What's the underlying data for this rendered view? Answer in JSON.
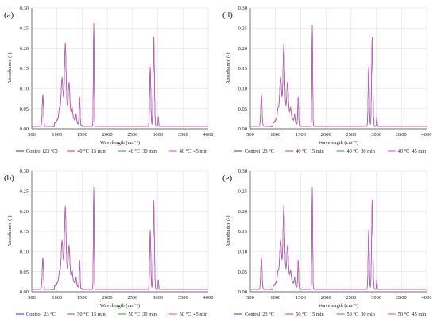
{
  "chart_data": [
    {
      "type": "line",
      "panel_label": "(a)",
      "xlabel": "Wavelength (cm⁻¹)",
      "ylabel": "Absorbance (-)",
      "xlim": [
        500,
        4000
      ],
      "ylim": [
        0,
        0.3
      ],
      "xticks": [
        "500",
        "1000",
        "1500",
        "2000",
        "2500",
        "3000",
        "3500",
        "4000"
      ],
      "yticks": [
        "0.00",
        "0.05",
        "0.10",
        "0.15",
        "0.20",
        "0.25",
        "0.30"
      ],
      "legend_position": "bottom",
      "series": [
        {
          "name": "Control (23 °C)",
          "color": "#3f3fd9"
        },
        {
          "name": "40 °C_15 min",
          "color": "#e8445a"
        },
        {
          "name": "40 °C_30 min",
          "color": "#3cae4a"
        },
        {
          "name": "40 °C_45 min",
          "color": "#e052e0"
        }
      ],
      "peaks": {
        "x": [
          720,
          1100,
          1165,
          1240,
          1450,
          1730,
          2850,
          2920,
          3010
        ],
        "y": [
          0.085,
          0.09,
          0.168,
          0.075,
          0.075,
          0.27,
          0.155,
          0.228,
          0.03
        ]
      }
    },
    {
      "type": "line",
      "panel_label": "(d)",
      "xlabel": "Wavelength (cm⁻¹)",
      "ylabel": "Absorbance (-)",
      "xlim": [
        500,
        4000
      ],
      "ylim": [
        0,
        0.3
      ],
      "xticks": [
        "500",
        "1000",
        "1500",
        "2000",
        "2500",
        "3000",
        "3500",
        "4000"
      ],
      "yticks": [
        "0.00",
        "0.05",
        "0.10",
        "0.15",
        "0.20",
        "0.25",
        "0.30"
      ],
      "legend_position": "bottom",
      "series": [
        {
          "name": "Control_23 °C",
          "color": "#3f3fd9"
        },
        {
          "name": "40 °C_15 min",
          "color": "#e8445a"
        },
        {
          "name": "40 °C_30 min",
          "color": "#3cae4a"
        },
        {
          "name": "40 °C_45 min",
          "color": "#e052e0"
        }
      ],
      "peaks": {
        "x": [
          720,
          1100,
          1165,
          1240,
          1450,
          1730,
          2850,
          2920,
          3010
        ],
        "y": [
          0.085,
          0.09,
          0.165,
          0.075,
          0.075,
          0.265,
          0.155,
          0.228,
          0.03
        ]
      }
    },
    {
      "type": "line",
      "panel_label": "(b)",
      "xlabel": "Wavelength (cm⁻¹)",
      "ylabel": "Absorbance (-)",
      "xlim": [
        500,
        4000
      ],
      "ylim": [
        0,
        0.3
      ],
      "xticks": [
        "500",
        "1000",
        "1500",
        "2000",
        "2500",
        "3000",
        "3500",
        "4000"
      ],
      "yticks": [
        "0.00",
        "0.05",
        "0.10",
        "0.15",
        "0.20",
        "0.25",
        "0.30"
      ],
      "legend_position": "bottom",
      "series": [
        {
          "name": "Control_23 °C",
          "color": "#3f3fd9"
        },
        {
          "name": "50 °C_15 min",
          "color": "#e8445a"
        },
        {
          "name": "50 °C_30 min",
          "color": "#3cae4a"
        },
        {
          "name": "50 °C_45 min",
          "color": "#e052e0"
        }
      ],
      "peaks": {
        "x": [
          720,
          1100,
          1165,
          1240,
          1450,
          1730,
          2850,
          2920,
          3010
        ],
        "y": [
          0.085,
          0.09,
          0.168,
          0.075,
          0.075,
          0.268,
          0.155,
          0.226,
          0.03
        ]
      }
    },
    {
      "type": "line",
      "panel_label": "(e)",
      "xlabel": "Wavelength (cm⁻¹)",
      "ylabel": "Absorbance (-)",
      "xlim": [
        500,
        4000
      ],
      "ylim": [
        0,
        0.3
      ],
      "xticks": [
        "500",
        "1000",
        "1500",
        "2000",
        "2500",
        "3000",
        "3500",
        "4000"
      ],
      "yticks": [
        "0.00",
        "0.05",
        "0.10",
        "0.15",
        "0.20",
        "0.25",
        "0.30"
      ],
      "legend_position": "bottom",
      "series": [
        {
          "name": "Control_23 °C",
          "color": "#3f3fd9"
        },
        {
          "name": "50 °C_15 min",
          "color": "#e8445a"
        },
        {
          "name": "50 °C_30 min",
          "color": "#3cae4a"
        },
        {
          "name": "50 °C_45 min",
          "color": "#e052e0"
        }
      ],
      "peaks": {
        "x": [
          720,
          1100,
          1165,
          1240,
          1450,
          1730,
          2850,
          2920,
          3010
        ],
        "y": [
          0.085,
          0.09,
          0.168,
          0.075,
          0.075,
          0.268,
          0.155,
          0.228,
          0.03
        ]
      }
    }
  ]
}
